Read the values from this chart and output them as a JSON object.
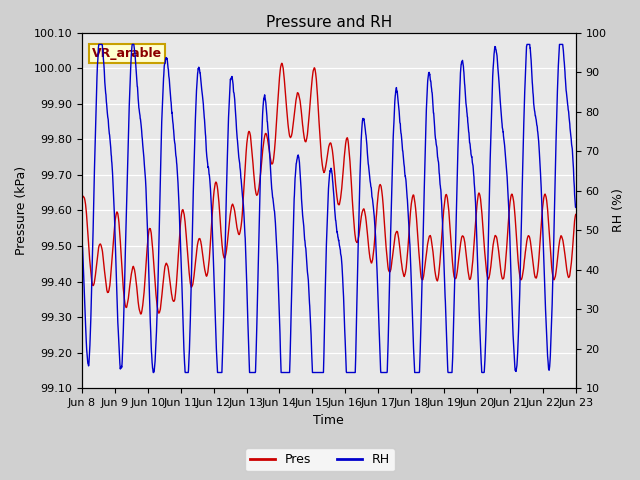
{
  "title": "Pressure and RH",
  "xlabel": "Time",
  "ylabel_left": "Pressure (kPa)",
  "ylabel_right": "RH (%)",
  "annotation": "VR_arable",
  "legend_labels": [
    "Pres",
    "RH"
  ],
  "legend_colors": [
    "#cc0000",
    "#0000cc"
  ],
  "pres_ylim": [
    99.1,
    100.1
  ],
  "rh_ylim": [
    10,
    100
  ],
  "pres_yticks": [
    99.1,
    99.2,
    99.3,
    99.4,
    99.5,
    99.6,
    99.7,
    99.8,
    99.9,
    100.0,
    100.1
  ],
  "pres_yticklabels": [
    "99.10",
    "99.20",
    "99.30",
    "99.40",
    "99.50",
    "99.60",
    "99.70",
    "99.80",
    "99.90",
    "100.00",
    "100.10"
  ],
  "rh_yticks": [
    10,
    20,
    30,
    40,
    50,
    60,
    70,
    80,
    90,
    100
  ],
  "rh_yticklabels": [
    "10",
    "20",
    "30",
    "40",
    "50",
    "60",
    "70",
    "80",
    "90",
    "100"
  ],
  "x_tick_labels": [
    "Jun 8",
    "Jun 9",
    "Jun 10",
    "Jun 11",
    "Jun 12",
    "Jun 13",
    "Jun 14",
    "Jun 15",
    "Jun 16",
    "Jun 17",
    "Jun 18",
    "Jun 19",
    "Jun 20",
    "Jun 21",
    "Jun 22",
    "Jun 23"
  ],
  "fig_bg_color": "#d0d0d0",
  "plot_bg_color": "#e8e8e8",
  "grid_color": "#ffffff",
  "title_fontsize": 11,
  "axis_label_fontsize": 9,
  "tick_fontsize": 8,
  "legend_fontsize": 9,
  "annotation_fontsize": 9,
  "line_width": 1.0
}
